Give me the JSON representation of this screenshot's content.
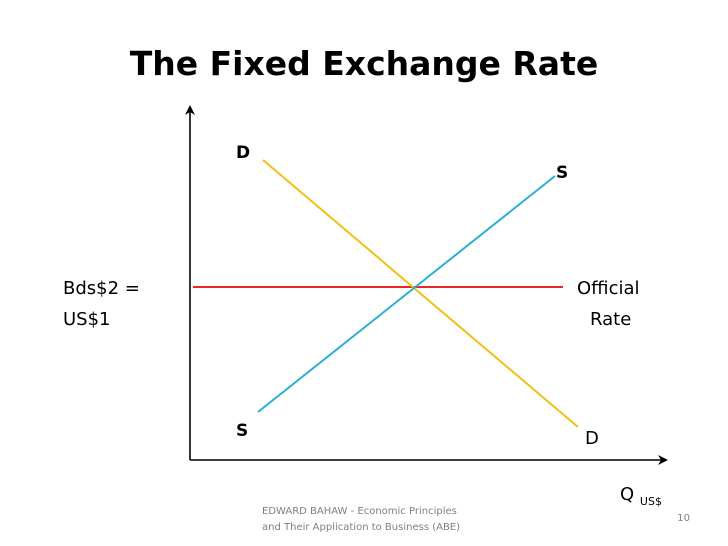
{
  "slide": {
    "title": "The Fixed Exchange Rate",
    "footer_line1": "EDWARD BAHAW - Economic Principles",
    "footer_line2": "and Their Application to Business (ABE)",
    "page_number": "10"
  },
  "diagram": {
    "rate_label_line1": "Bds$2 =",
    "rate_label_line2": "US$1",
    "official_rate_line1": "Official",
    "official_rate_line2": "Rate",
    "demand_label_top": "D",
    "demand_label_bottom": "D",
    "supply_label_top": "S",
    "supply_label_bottom": "S",
    "x_axis_label": "Q",
    "x_axis_subscript": "US$"
  },
  "colors": {
    "demand": "#F2C012",
    "supply": "#2BAFD6",
    "official_rate": "#E8262A",
    "axis": "#000000"
  }
}
